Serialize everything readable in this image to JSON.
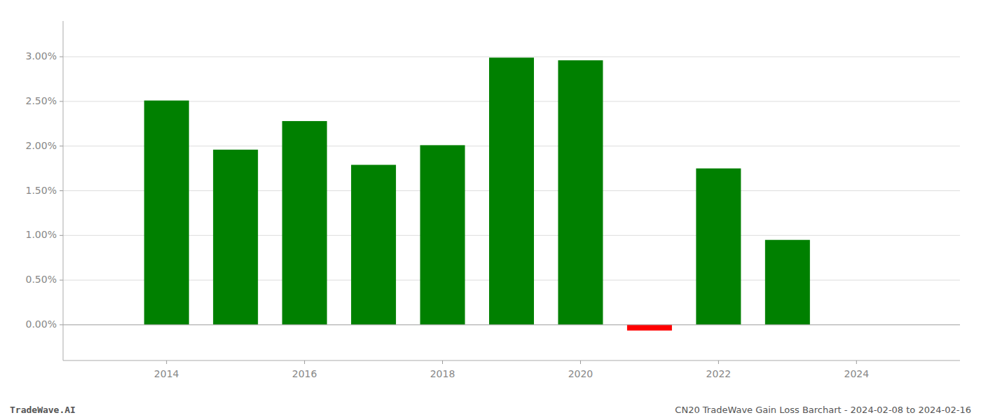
{
  "chart_data": {
    "type": "bar",
    "x": [
      2014,
      2015,
      2016,
      2017,
      2018,
      2019,
      2020,
      2021,
      2022,
      2023
    ],
    "values": [
      0.0251,
      0.0196,
      0.0228,
      0.0179,
      0.0201,
      0.0299,
      0.0296,
      -0.00065,
      0.0175,
      0.0095
    ],
    "colors": [
      "#008000",
      "#008000",
      "#008000",
      "#008000",
      "#008000",
      "#008000",
      "#008000",
      "#ff0000",
      "#008000",
      "#008000"
    ],
    "xlim": [
      2012.5,
      2025.5
    ],
    "xticks": [
      2014,
      2016,
      2018,
      2020,
      2022,
      2024
    ],
    "ylim": [
      -0.004,
      0.034
    ],
    "yticks": [
      {
        "value": 0.0,
        "label": "0.00%"
      },
      {
        "value": 0.005,
        "label": "0.50%"
      },
      {
        "value": 0.01,
        "label": "1.00%"
      },
      {
        "value": 0.015,
        "label": "1.50%"
      },
      {
        "value": 0.02,
        "label": "2.00%"
      },
      {
        "value": 0.025,
        "label": "2.50%"
      },
      {
        "value": 0.03,
        "label": "3.00%"
      }
    ],
    "grid": true,
    "annotations": [
      "TradeWave.AI",
      "CN20 TradeWave Gain Loss Barchart - 2024-02-08 to 2024-02-16"
    ]
  }
}
